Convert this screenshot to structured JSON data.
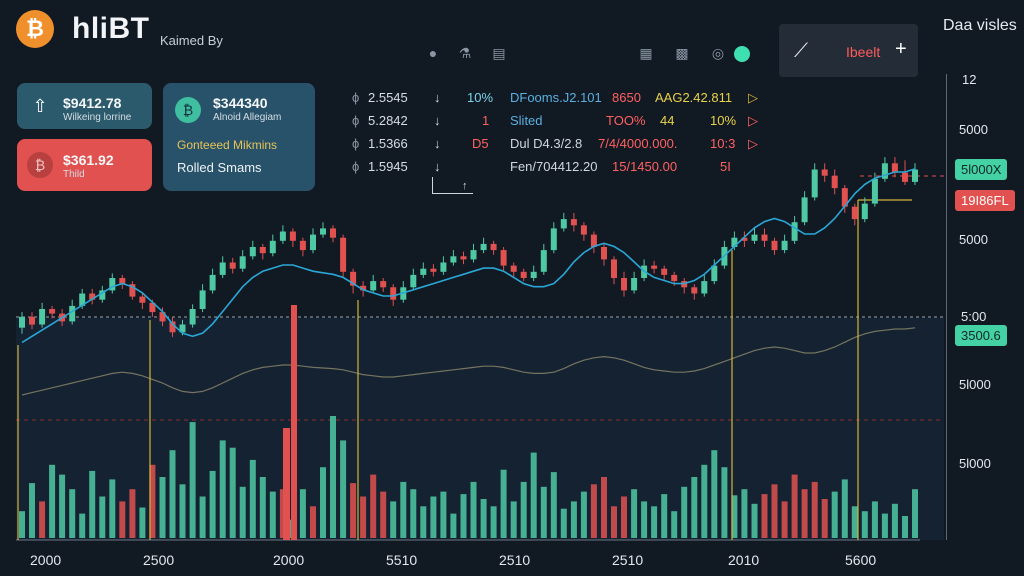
{
  "header": {
    "brand": "hliBT",
    "tagline": "Kaimed By",
    "data_title": "Daa visles",
    "tool_label": "Ibeelt",
    "tool_add": "+"
  },
  "cards": {
    "blue": {
      "price": "$9412.78",
      "sub": "Wilkeing lorrine"
    },
    "red": {
      "price": "$361.92",
      "sub": "Thild"
    },
    "teal": {
      "price": "$344340",
      "sub": "Alnoid Allegiam",
      "line1": "Gonteeed Mikmins",
      "line2": "Rolled Smams"
    }
  },
  "table": {
    "rows": [
      {
        "c1": "2.5545",
        "c2": "10%",
        "c3": "DFooms.J2.101",
        "c4": "8650",
        "c5": "AAG2.42.811"
      },
      {
        "c1": "5.2842",
        "c2": "1",
        "c3": "Slited",
        "c4": "TOO%",
        "c5": "44",
        "c6": "10%"
      },
      {
        "c1": "1.5366",
        "c2": "D5",
        "c3": "Dul D4.3/2.8",
        "c4": "7/4/4000.000.",
        "c5": "10:3"
      },
      {
        "c1": "1.5945",
        "c2": "",
        "c3": "Fen/704412.20",
        "c4": "15/1450.00",
        "c5": "5I"
      }
    ]
  },
  "y_axis": {
    "top": "12",
    "labels": [
      "5000",
      "5000",
      "5:00",
      "5l000",
      "5l000"
    ]
  },
  "price_tags": {
    "green_top": "5l000X",
    "red": "19I86FL",
    "green_mid": "3500.6"
  },
  "x_axis": [
    "2000",
    "2500",
    "2000",
    "5510",
    "2510",
    "2510",
    "2010",
    "5600"
  ],
  "colors": {
    "bg": "#111923",
    "up": "#4fc9a3",
    "down": "#e0514f",
    "line": "#2aa7d6",
    "accent": "#f0902c"
  },
  "chart_data": {
    "type": "candlestick",
    "title": "",
    "xlabel": "",
    "ylabel": "",
    "candles": [
      [
        48,
        55,
        44,
        58
      ],
      [
        55,
        50,
        47,
        58
      ],
      [
        50,
        60,
        48,
        64
      ],
      [
        60,
        57,
        54,
        62
      ],
      [
        57,
        52,
        49,
        60
      ],
      [
        52,
        62,
        50,
        66
      ],
      [
        62,
        70,
        60,
        73
      ],
      [
        70,
        66,
        63,
        73
      ],
      [
        66,
        72,
        64,
        75
      ],
      [
        72,
        80,
        70,
        83
      ],
      [
        80,
        76,
        73,
        82
      ],
      [
        76,
        68,
        66,
        78
      ],
      [
        68,
        64,
        60,
        70
      ],
      [
        64,
        58,
        55,
        66
      ],
      [
        58,
        52,
        49,
        61
      ],
      [
        52,
        45,
        42,
        55
      ],
      [
        45,
        50,
        43,
        53
      ],
      [
        50,
        60,
        48,
        63
      ],
      [
        60,
        72,
        58,
        76
      ],
      [
        72,
        82,
        70,
        86
      ],
      [
        82,
        90,
        80,
        94
      ],
      [
        90,
        86,
        83,
        93
      ],
      [
        86,
        94,
        84,
        98
      ],
      [
        94,
        100,
        92,
        104
      ],
      [
        100,
        96,
        92,
        102
      ],
      [
        96,
        104,
        94,
        108
      ],
      [
        104,
        110,
        102,
        114
      ],
      [
        110,
        104,
        100,
        112
      ],
      [
        104,
        98,
        94,
        106
      ],
      [
        98,
        108,
        96,
        112
      ],
      [
        108,
        112,
        106,
        116
      ],
      [
        112,
        106,
        103,
        114
      ],
      [
        106,
        84,
        80,
        108
      ],
      [
        84,
        75,
        70,
        86
      ],
      [
        75,
        72,
        68,
        78
      ],
      [
        72,
        78,
        70,
        82
      ],
      [
        78,
        74,
        71,
        80
      ],
      [
        74,
        66,
        62,
        76
      ],
      [
        66,
        74,
        64,
        78
      ],
      [
        74,
        82,
        72,
        86
      ],
      [
        82,
        86,
        80,
        90
      ],
      [
        86,
        84,
        81,
        89
      ],
      [
        84,
        90,
        82,
        94
      ],
      [
        90,
        94,
        88,
        98
      ],
      [
        94,
        92,
        89,
        97
      ],
      [
        92,
        98,
        90,
        102
      ],
      [
        98,
        102,
        96,
        106
      ],
      [
        102,
        98,
        95,
        104
      ],
      [
        98,
        88,
        85,
        100
      ],
      [
        88,
        84,
        81,
        90
      ],
      [
        84,
        80,
        78,
        86
      ],
      [
        80,
        84,
        78,
        88
      ],
      [
        84,
        98,
        82,
        102
      ],
      [
        98,
        112,
        96,
        116
      ],
      [
        112,
        118,
        110,
        122
      ],
      [
        118,
        114,
        110,
        122
      ],
      [
        114,
        108,
        104,
        116
      ],
      [
        108,
        100,
        96,
        110
      ],
      [
        100,
        92,
        88,
        102
      ],
      [
        92,
        80,
        76,
        94
      ],
      [
        80,
        72,
        68,
        84
      ],
      [
        72,
        80,
        70,
        84
      ],
      [
        80,
        88,
        78,
        92
      ],
      [
        88,
        86,
        83,
        91
      ],
      [
        86,
        82,
        79,
        88
      ],
      [
        82,
        78,
        75,
        84
      ],
      [
        78,
        74,
        70,
        80
      ],
      [
        74,
        70,
        66,
        76
      ],
      [
        70,
        78,
        68,
        82
      ],
      [
        78,
        88,
        76,
        92
      ],
      [
        88,
        100,
        86,
        104
      ],
      [
        100,
        106,
        98,
        110
      ],
      [
        106,
        104,
        100,
        110
      ],
      [
        104,
        108,
        102,
        112
      ],
      [
        108,
        104,
        100,
        112
      ],
      [
        104,
        98,
        95,
        106
      ],
      [
        98,
        104,
        96,
        108
      ],
      [
        104,
        116,
        102,
        120
      ],
      [
        116,
        132,
        114,
        136
      ],
      [
        132,
        150,
        130,
        154
      ],
      [
        150,
        146,
        142,
        154
      ],
      [
        146,
        138,
        134,
        150
      ],
      [
        138,
        126,
        122,
        140
      ],
      [
        126,
        118,
        114,
        128
      ],
      [
        118,
        128,
        116,
        132
      ],
      [
        128,
        144,
        126,
        148
      ],
      [
        144,
        154,
        142,
        158
      ],
      [
        154,
        148,
        145,
        158
      ],
      [
        148,
        142,
        140,
        156
      ],
      [
        142,
        150,
        140,
        154
      ]
    ],
    "volumes": [
      [
        22,
        "up"
      ],
      [
        45,
        "up"
      ],
      [
        30,
        "down"
      ],
      [
        60,
        "up"
      ],
      [
        52,
        "up"
      ],
      [
        40,
        "up"
      ],
      [
        20,
        "up"
      ],
      [
        55,
        "up"
      ],
      [
        34,
        "up"
      ],
      [
        48,
        "up"
      ],
      [
        30,
        "down"
      ],
      [
        40,
        "down"
      ],
      [
        25,
        "up"
      ],
      [
        60,
        "down"
      ],
      [
        50,
        "up"
      ],
      [
        72,
        "up"
      ],
      [
        44,
        "up"
      ],
      [
        95,
        "up"
      ],
      [
        34,
        "up"
      ],
      [
        55,
        "up"
      ],
      [
        80,
        "up"
      ],
      [
        74,
        "up"
      ],
      [
        42,
        "up"
      ],
      [
        64,
        "up"
      ],
      [
        50,
        "up"
      ],
      [
        38,
        "up"
      ],
      [
        40,
        "down"
      ],
      [
        15,
        "up"
      ],
      [
        40,
        "up"
      ],
      [
        26,
        "down"
      ],
      [
        58,
        "up"
      ],
      [
        100,
        "up"
      ],
      [
        80,
        "up"
      ],
      [
        45,
        "down"
      ],
      [
        34,
        "down"
      ],
      [
        52,
        "down"
      ],
      [
        38,
        "down"
      ],
      [
        30,
        "up"
      ],
      [
        46,
        "up"
      ],
      [
        40,
        "up"
      ],
      [
        26,
        "up"
      ],
      [
        34,
        "up"
      ],
      [
        38,
        "up"
      ],
      [
        20,
        "up"
      ],
      [
        36,
        "up"
      ],
      [
        46,
        "up"
      ],
      [
        32,
        "up"
      ],
      [
        26,
        "up"
      ],
      [
        56,
        "up"
      ],
      [
        30,
        "up"
      ],
      [
        46,
        "up"
      ],
      [
        70,
        "up"
      ],
      [
        42,
        "up"
      ],
      [
        54,
        "up"
      ],
      [
        24,
        "up"
      ],
      [
        30,
        "up"
      ],
      [
        38,
        "up"
      ],
      [
        44,
        "down"
      ],
      [
        50,
        "down"
      ],
      [
        26,
        "down"
      ],
      [
        34,
        "down"
      ],
      [
        40,
        "up"
      ],
      [
        30,
        "up"
      ],
      [
        26,
        "up"
      ],
      [
        36,
        "up"
      ],
      [
        22,
        "up"
      ],
      [
        42,
        "up"
      ],
      [
        50,
        "up"
      ],
      [
        60,
        "up"
      ],
      [
        72,
        "up"
      ],
      [
        58,
        "up"
      ],
      [
        35,
        "up"
      ],
      [
        40,
        "up"
      ],
      [
        28,
        "up"
      ],
      [
        36,
        "down"
      ],
      [
        44,
        "down"
      ],
      [
        30,
        "down"
      ],
      [
        52,
        "down"
      ],
      [
        40,
        "down"
      ],
      [
        46,
        "down"
      ],
      [
        32,
        "down"
      ],
      [
        38,
        "up"
      ],
      [
        48,
        "up"
      ],
      [
        26,
        "up"
      ],
      [
        22,
        "up"
      ],
      [
        30,
        "up"
      ],
      [
        20,
        "up"
      ],
      [
        28,
        "up"
      ],
      [
        18,
        "up"
      ],
      [
        40,
        "up"
      ]
    ],
    "ma_line": [
      50,
      54,
      58,
      62,
      66,
      70,
      74,
      78,
      82,
      86,
      88,
      86,
      82,
      76,
      70,
      62,
      56,
      54,
      56,
      62,
      70,
      78,
      86,
      92,
      96,
      98,
      100,
      100,
      98,
      96,
      95,
      94,
      92,
      88,
      84,
      82,
      80,
      80,
      82,
      84,
      86,
      88,
      90,
      92,
      94,
      96,
      98,
      98,
      96,
      92,
      88,
      86,
      86,
      88,
      94,
      102,
      108,
      112,
      114,
      112,
      108,
      102,
      96,
      92,
      90,
      88,
      88,
      90,
      94,
      100,
      106,
      112,
      118,
      124,
      128,
      130,
      128,
      124,
      120,
      120,
      124,
      130,
      138,
      146,
      152,
      156,
      158,
      160,
      160,
      162
    ]
  }
}
